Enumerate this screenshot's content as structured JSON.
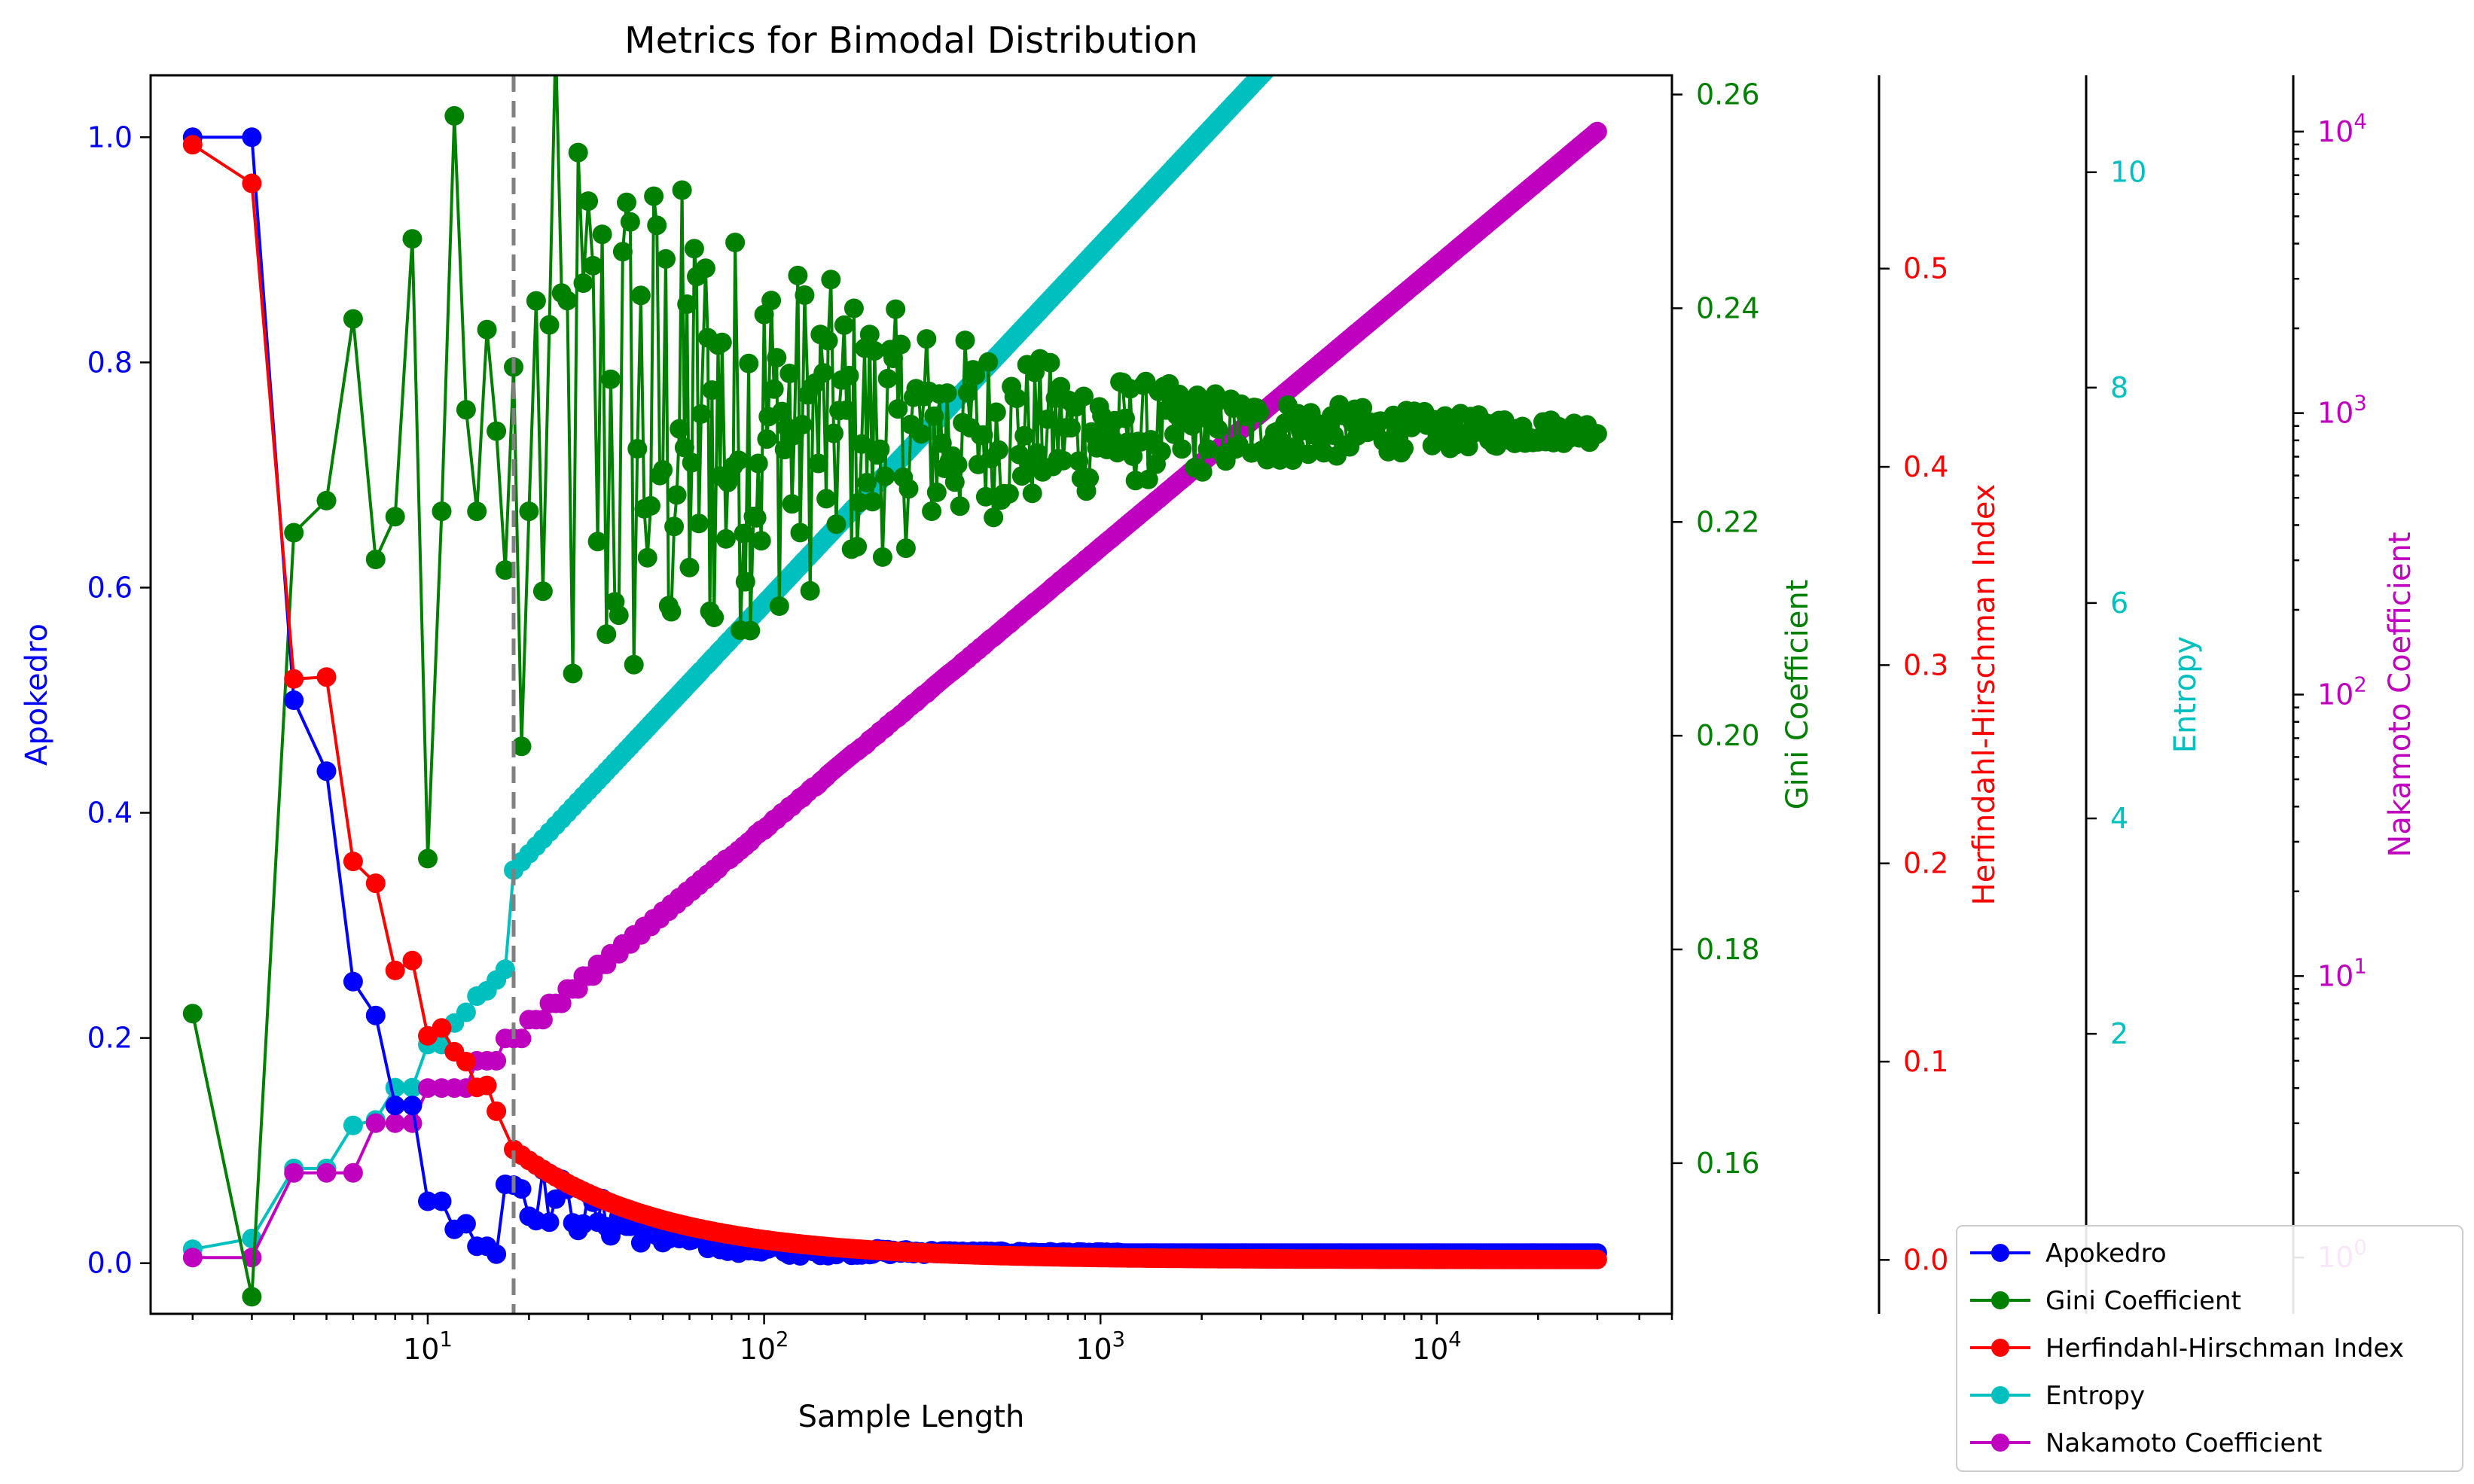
{
  "chart_data": {
    "type": "line",
    "title": "Metrics for Bimodal Distribution",
    "xlabel": "Sample Length",
    "xscale": "log",
    "xlim": [
      1.5,
      50000
    ],
    "x_ticks": [
      {
        "value": 10,
        "base": "10",
        "exp": "1"
      },
      {
        "value": 100,
        "base": "10",
        "exp": "2"
      },
      {
        "value": 1000,
        "base": "10",
        "exp": "3"
      },
      {
        "value": 10000,
        "base": "10",
        "exp": "4"
      }
    ],
    "vline_x": 18,
    "colors": {
      "apokedro": "#0000ff",
      "gini": "#008000",
      "hhi": "#ff0000",
      "entropy": "#00bfbf",
      "nakamoto": "#bf00bf",
      "vline": "#808080"
    },
    "axes": {
      "apokedro": {
        "label": "Apokedro",
        "ylim": [
          -0.045,
          1.055
        ],
        "ticks": [
          "0.0",
          "0.2",
          "0.4",
          "0.6",
          "0.8",
          "1.0"
        ],
        "tick_values": [
          0,
          0.2,
          0.4,
          0.6,
          0.8,
          1.0
        ]
      },
      "gini": {
        "label": "Gini Coefficient",
        "ylim": [
          0.1459,
          0.2618
        ],
        "ticks": [
          "0.16",
          "0.18",
          "0.20",
          "0.22",
          "0.24",
          "0.26"
        ],
        "tick_values": [
          0.16,
          0.18,
          0.2,
          0.22,
          0.24,
          0.26
        ]
      },
      "hhi": {
        "label": "Herfindahl-Hirschman Index",
        "ylim": [
          -0.0272,
          0.5975
        ],
        "ticks": [
          "0.0",
          "0.1",
          "0.2",
          "0.3",
          "0.4",
          "0.5"
        ],
        "tick_values": [
          0,
          0.1,
          0.2,
          0.3,
          0.4,
          0.5
        ]
      },
      "entropy": {
        "label": "Entropy",
        "ylim": [
          -0.6,
          10.9
        ],
        "ticks": [
          "2",
          "4",
          "6",
          "8",
          "10"
        ],
        "tick_values": [
          2,
          4,
          6,
          8,
          10
        ]
      },
      "nakamoto": {
        "label": "Nakamoto Coefficient",
        "ylim_log10": [
          -0.2,
          4.2
        ],
        "ticks": [
          {
            "base": "10",
            "exp": "0",
            "value": 1
          },
          {
            "base": "10",
            "exp": "1",
            "value": 10
          },
          {
            "base": "10",
            "exp": "2",
            "value": 100
          },
          {
            "base": "10",
            "exp": "3",
            "value": 1000
          },
          {
            "base": "10",
            "exp": "4",
            "value": 10000
          }
        ]
      }
    },
    "series": [
      {
        "name": "Apokedro",
        "key": "apokedro",
        "x": [
          2,
          3,
          4,
          5,
          6,
          7,
          8,
          9,
          10,
          11,
          12,
          13,
          14,
          15,
          16,
          17
        ],
        "values": [
          1.0,
          1.0,
          0.5,
          0.437,
          0.25,
          0.22,
          0.14,
          0.14,
          0.055,
          0.055,
          0.03,
          0.035,
          0.015,
          0.015,
          0.008,
          0.07
        ]
      },
      {
        "name": "Gini Coefficient",
        "key": "gini",
        "x": [
          2,
          3,
          4,
          5,
          6,
          7,
          8,
          9,
          10,
          11,
          12,
          13,
          14,
          15,
          16,
          17,
          18,
          19,
          20
        ],
        "values": [
          0.174,
          0.1475,
          0.219,
          0.222,
          0.239,
          0.2165,
          0.2205,
          0.2465,
          0.1885,
          0.221,
          0.258,
          0.2305,
          0.221,
          0.238,
          0.2285,
          0.2155,
          0.2345,
          0.199,
          0.221
        ]
      },
      {
        "name": "Herfindahl-Hirschman Index",
        "key": "hhi",
        "x": [
          2,
          3,
          4,
          5,
          6,
          7,
          8,
          9,
          10,
          11,
          12,
          13,
          14,
          15,
          16
        ],
        "values": [
          0.5625,
          0.543,
          0.293,
          0.294,
          0.201,
          0.19,
          0.146,
          0.151,
          0.113,
          0.117,
          0.105,
          0.1,
          0.087,
          0.088,
          0.075
        ]
      },
      {
        "name": "Entropy",
        "key": "entropy",
        "x": [
          2,
          3,
          4,
          5,
          6,
          7,
          8,
          9,
          10,
          11,
          12,
          13,
          14,
          15,
          16,
          17
        ],
        "values": [
          0.0,
          0.1,
          0.75,
          0.75,
          1.15,
          1.2,
          1.5,
          1.5,
          1.9,
          1.9,
          2.1,
          2.2,
          2.35,
          2.4,
          2.5,
          2.6
        ]
      },
      {
        "name": "Nakamoto Coefficient",
        "key": "nakamoto",
        "x": [
          2,
          3,
          4,
          5,
          6,
          7,
          8,
          9,
          10,
          11,
          12,
          13,
          14,
          15,
          16,
          17
        ],
        "values": [
          1,
          1,
          2,
          2,
          2,
          3,
          3,
          3,
          4,
          4,
          4,
          4,
          5,
          5,
          5,
          6
        ]
      }
    ],
    "legend": {
      "placement": "lower-right",
      "entries": [
        "Apokedro",
        "Gini Coefficient",
        "Herfindahl-Hirschman Index",
        "Entropy",
        "Nakamoto Coefficient"
      ]
    }
  }
}
